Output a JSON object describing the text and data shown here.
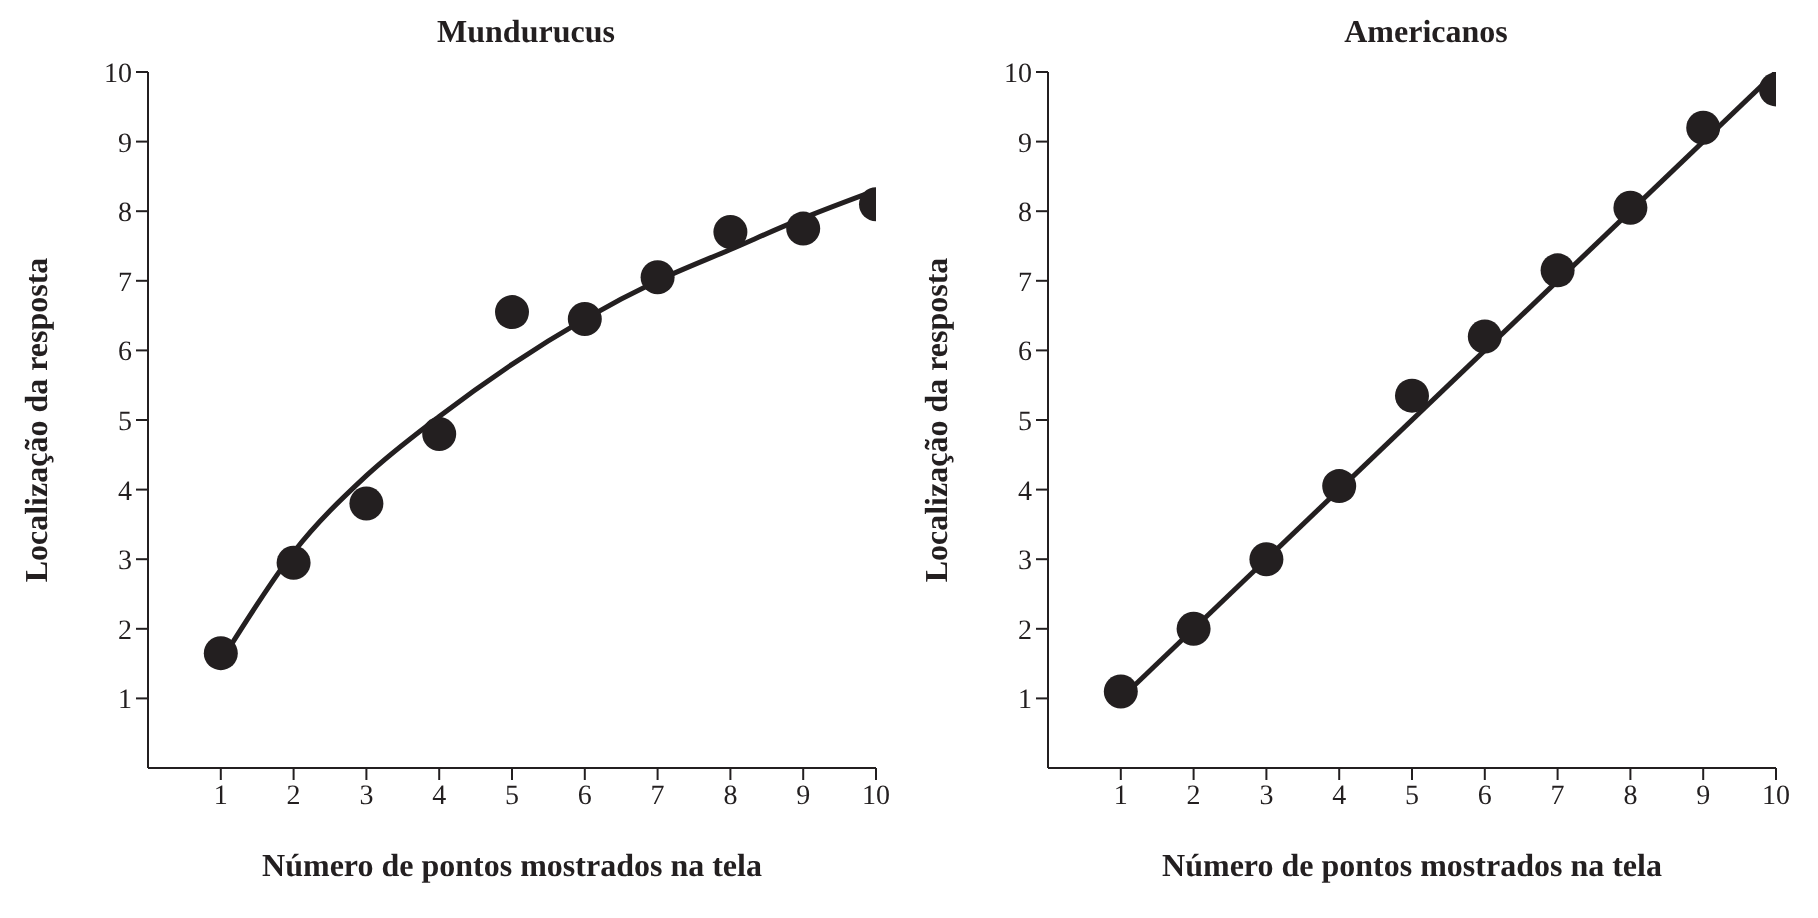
{
  "chart_data": [
    {
      "type": "scatter",
      "title": "Mundurucus",
      "xlabel": "Número de pontos mostrados na tela",
      "ylabel": "Localização da resposta",
      "xlim": [
        0,
        10
      ],
      "xticks": [
        1,
        2,
        3,
        4,
        5,
        6,
        7,
        8,
        9,
        10
      ],
      "ylim": [
        0,
        10
      ],
      "yticks": [
        1,
        2,
        3,
        4,
        5,
        6,
        7,
        8,
        9,
        10
      ],
      "series": [
        {
          "type": "scatter",
          "marker": "circle",
          "color": "#231f20",
          "x": [
            1,
            2,
            3,
            4,
            5,
            6,
            7,
            8,
            9,
            10
          ],
          "values": [
            1.65,
            2.95,
            3.8,
            4.8,
            6.55,
            6.45,
            7.05,
            7.7,
            7.75,
            8.1
          ]
        },
        {
          "type": "line",
          "marker": "none",
          "color": "#231f20",
          "line_style": "solid",
          "x": [
            1.1,
            2,
            3,
            4,
            5,
            6,
            7,
            8,
            9,
            10
          ],
          "values": [
            1.7,
            3.1,
            4.2,
            5.05,
            5.8,
            6.45,
            7.0,
            7.45,
            7.9,
            8.3
          ]
        }
      ]
    },
    {
      "type": "scatter",
      "title": "Americanos",
      "xlabel": "Número de pontos mostrados na tela",
      "ylabel": "Localização da resposta",
      "xlim": [
        0,
        10
      ],
      "xticks": [
        1,
        2,
        3,
        4,
        5,
        6,
        7,
        8,
        9,
        10
      ],
      "ylim": [
        0,
        10
      ],
      "yticks": [
        1,
        2,
        3,
        4,
        5,
        6,
        7,
        8,
        9,
        10
      ],
      "series": [
        {
          "type": "scatter",
          "marker": "circle",
          "color": "#231f20",
          "x": [
            1,
            2,
            3,
            4,
            5,
            6,
            7,
            8,
            9,
            10
          ],
          "values": [
            1.1,
            2.0,
            3.0,
            4.05,
            5.35,
            6.2,
            7.15,
            8.05,
            9.2,
            9.75
          ]
        },
        {
          "type": "line",
          "marker": "none",
          "color": "#231f20",
          "line_style": "solid",
          "x": [
            1.1,
            10
          ],
          "values": [
            1.1,
            10
          ]
        }
      ]
    }
  ]
}
